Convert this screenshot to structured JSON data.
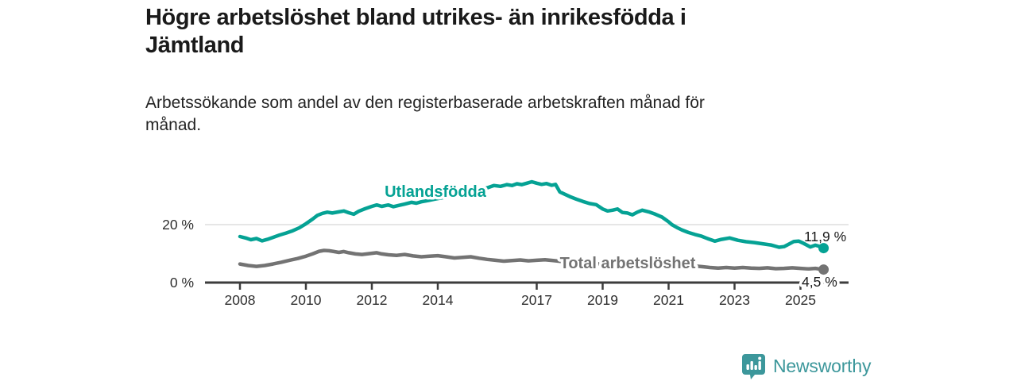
{
  "header": {
    "title": "Högre arbetslöshet bland utrikes- än inrikesfödda i\nJämtland",
    "subtitle": "Arbetssökande som andel av den registerbaserade arbetskraften månad för\nmånad."
  },
  "chart_data": {
    "type": "line",
    "unit": "%",
    "x_axis": {
      "ticks": [
        "2008",
        "2010",
        "2012",
        "2014",
        "2017",
        "2019",
        "2021",
        "2023",
        "2025"
      ],
      "tick_years": [
        2008,
        2010,
        2012,
        2014,
        2017,
        2019,
        2021,
        2023,
        2025
      ],
      "range": [
        2007.9,
        2026.4
      ]
    },
    "y_axis": {
      "ticks": [
        {
          "value": 0,
          "label": "0 %"
        },
        {
          "value": 20,
          "label": "20 %"
        }
      ],
      "range": [
        0,
        40
      ],
      "gridlines": [
        20
      ],
      "grid_on": true
    },
    "series": [
      {
        "name": "Utlandsfödda",
        "color": "#05a294",
        "end_label": "11,9 %",
        "end_value": 11.9,
        "points": [
          [
            2008.0,
            15.9
          ],
          [
            2008.17,
            15.4
          ],
          [
            2008.33,
            14.8
          ],
          [
            2008.5,
            15.2
          ],
          [
            2008.67,
            14.4
          ],
          [
            2008.83,
            14.9
          ],
          [
            2009.0,
            15.6
          ],
          [
            2009.2,
            16.4
          ],
          [
            2009.4,
            17.1
          ],
          [
            2009.6,
            17.9
          ],
          [
            2009.8,
            18.9
          ],
          [
            2010.0,
            20.3
          ],
          [
            2010.2,
            21.9
          ],
          [
            2010.35,
            23.2
          ],
          [
            2010.5,
            23.9
          ],
          [
            2010.65,
            24.3
          ],
          [
            2010.8,
            24.0
          ],
          [
            2011.0,
            24.4
          ],
          [
            2011.15,
            24.7
          ],
          [
            2011.3,
            24.1
          ],
          [
            2011.45,
            23.6
          ],
          [
            2011.6,
            24.6
          ],
          [
            2011.8,
            25.5
          ],
          [
            2012.0,
            26.3
          ],
          [
            2012.15,
            26.8
          ],
          [
            2012.3,
            26.3
          ],
          [
            2012.5,
            26.8
          ],
          [
            2012.65,
            26.2
          ],
          [
            2012.8,
            26.6
          ],
          [
            2013.0,
            27.1
          ],
          [
            2013.2,
            27.7
          ],
          [
            2013.35,
            27.4
          ],
          [
            2013.5,
            27.9
          ],
          [
            2013.7,
            28.3
          ],
          [
            2013.9,
            28.8
          ],
          [
            2014.1,
            29.2
          ],
          [
            2014.3,
            29.6
          ],
          [
            2014.5,
            30.0
          ],
          [
            2014.7,
            30.5
          ],
          [
            2014.9,
            31.0
          ],
          [
            2015.1,
            31.5
          ],
          [
            2015.3,
            32.1
          ],
          [
            2015.5,
            32.7
          ],
          [
            2015.7,
            33.5
          ],
          [
            2015.9,
            33.2
          ],
          [
            2016.1,
            33.8
          ],
          [
            2016.25,
            33.5
          ],
          [
            2016.4,
            34.1
          ],
          [
            2016.55,
            33.8
          ],
          [
            2016.7,
            34.3
          ],
          [
            2016.85,
            34.8
          ],
          [
            2017.0,
            34.3
          ],
          [
            2017.15,
            33.9
          ],
          [
            2017.3,
            34.2
          ],
          [
            2017.45,
            33.6
          ],
          [
            2017.57,
            33.9
          ],
          [
            2017.7,
            31.3
          ],
          [
            2017.85,
            30.5
          ],
          [
            2018.0,
            29.7
          ],
          [
            2018.2,
            28.8
          ],
          [
            2018.4,
            28.0
          ],
          [
            2018.6,
            27.3
          ],
          [
            2018.8,
            26.9
          ],
          [
            2019.0,
            25.4
          ],
          [
            2019.15,
            24.7
          ],
          [
            2019.3,
            25.0
          ],
          [
            2019.45,
            25.4
          ],
          [
            2019.6,
            24.2
          ],
          [
            2019.75,
            24.0
          ],
          [
            2019.9,
            23.4
          ],
          [
            2020.05,
            24.3
          ],
          [
            2020.2,
            25.0
          ],
          [
            2020.4,
            24.4
          ],
          [
            2020.6,
            23.6
          ],
          [
            2020.8,
            22.6
          ],
          [
            2021.0,
            21.0
          ],
          [
            2021.1,
            20.0
          ],
          [
            2021.25,
            19.0
          ],
          [
            2021.4,
            18.2
          ],
          [
            2021.6,
            17.3
          ],
          [
            2021.8,
            16.6
          ],
          [
            2022.0,
            16.0
          ],
          [
            2022.2,
            15.1
          ],
          [
            2022.4,
            14.3
          ],
          [
            2022.6,
            14.9
          ],
          [
            2022.85,
            15.4
          ],
          [
            2023.1,
            14.6
          ],
          [
            2023.35,
            14.1
          ],
          [
            2023.6,
            13.8
          ],
          [
            2023.85,
            13.4
          ],
          [
            2024.1,
            13.0
          ],
          [
            2024.35,
            12.2
          ],
          [
            2024.5,
            12.4
          ],
          [
            2024.65,
            13.3
          ],
          [
            2024.8,
            14.2
          ],
          [
            2024.95,
            14.3
          ],
          [
            2025.1,
            13.5
          ],
          [
            2025.3,
            12.3
          ],
          [
            2025.45,
            12.9
          ],
          [
            2025.6,
            12.4
          ],
          [
            2025.7,
            11.9
          ]
        ]
      },
      {
        "name": "Total arbetslöshet",
        "color": "#737373",
        "end_label": "4,5 %",
        "end_value": 4.5,
        "points": [
          [
            2008.0,
            6.4
          ],
          [
            2008.25,
            5.9
          ],
          [
            2008.5,
            5.6
          ],
          [
            2008.75,
            5.9
          ],
          [
            2009.0,
            6.4
          ],
          [
            2009.25,
            7.0
          ],
          [
            2009.5,
            7.7
          ],
          [
            2009.75,
            8.3
          ],
          [
            2010.0,
            9.1
          ],
          [
            2010.2,
            9.9
          ],
          [
            2010.4,
            10.8
          ],
          [
            2010.55,
            11.1
          ],
          [
            2010.7,
            11.0
          ],
          [
            2010.85,
            10.7
          ],
          [
            2011.0,
            10.4
          ],
          [
            2011.15,
            10.7
          ],
          [
            2011.3,
            10.3
          ],
          [
            2011.5,
            9.9
          ],
          [
            2011.7,
            9.7
          ],
          [
            2011.85,
            9.9
          ],
          [
            2012.0,
            10.1
          ],
          [
            2012.15,
            10.3
          ],
          [
            2012.3,
            9.9
          ],
          [
            2012.5,
            9.6
          ],
          [
            2012.75,
            9.4
          ],
          [
            2013.0,
            9.7
          ],
          [
            2013.25,
            9.2
          ],
          [
            2013.5,
            8.9
          ],
          [
            2013.75,
            9.1
          ],
          [
            2014.0,
            9.3
          ],
          [
            2014.25,
            8.9
          ],
          [
            2014.5,
            8.5
          ],
          [
            2014.75,
            8.7
          ],
          [
            2015.0,
            8.9
          ],
          [
            2015.25,
            8.4
          ],
          [
            2015.5,
            8.0
          ],
          [
            2015.75,
            7.7
          ],
          [
            2016.0,
            7.4
          ],
          [
            2016.25,
            7.6
          ],
          [
            2016.5,
            7.8
          ],
          [
            2016.75,
            7.5
          ],
          [
            2017.0,
            7.7
          ],
          [
            2017.25,
            7.9
          ],
          [
            2017.5,
            7.6
          ],
          [
            2017.75,
            7.3
          ],
          [
            2018.0,
            7.1
          ],
          [
            2018.5,
            6.7
          ],
          [
            2019.0,
            6.4
          ],
          [
            2019.5,
            6.2
          ],
          [
            2020.0,
            6.8
          ],
          [
            2020.3,
            7.5
          ],
          [
            2020.6,
            7.2
          ],
          [
            2021.0,
            6.6
          ],
          [
            2021.5,
            6.0
          ],
          [
            2022.0,
            5.5
          ],
          [
            2022.25,
            5.2
          ],
          [
            2022.5,
            5.0
          ],
          [
            2022.75,
            5.2
          ],
          [
            2023.0,
            5.0
          ],
          [
            2023.25,
            5.2
          ],
          [
            2023.5,
            5.0
          ],
          [
            2023.75,
            4.9
          ],
          [
            2024.0,
            5.1
          ],
          [
            2024.25,
            4.8
          ],
          [
            2024.5,
            4.9
          ],
          [
            2024.75,
            5.1
          ],
          [
            2025.0,
            4.9
          ],
          [
            2025.25,
            4.7
          ],
          [
            2025.45,
            4.9
          ],
          [
            2025.7,
            4.5
          ]
        ]
      }
    ],
    "title": "Högre arbetslöshet bland utrikes- än inrikesfödda i Jämtland",
    "xlabel": "",
    "ylabel": "",
    "legend_position": "inline-labels"
  },
  "footer": {
    "brand": "Newsworthy",
    "brand_color": "#3c979b"
  }
}
